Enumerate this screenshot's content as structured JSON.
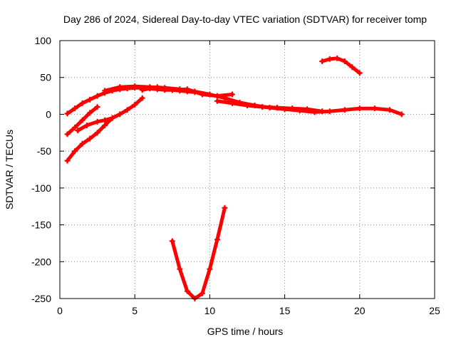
{
  "chart_data": {
    "type": "line",
    "title": "Day 286 of 2024, Sidereal Day-to-day VTEC variation (SDTVAR) for receiver tomp",
    "xlabel": "GPS time / hours",
    "ylabel": "SDTVAR / TECUs",
    "xlim": [
      0,
      25
    ],
    "ylim": [
      -250,
      100
    ],
    "xticks": [
      0,
      5,
      10,
      15,
      20,
      25
    ],
    "yticks": [
      100,
      50,
      0,
      -50,
      -100,
      -150,
      -200,
      -250
    ],
    "grid": true,
    "color": "#ff0000",
    "series": [
      {
        "name": "arc-1",
        "x": [
          0.5,
          1.0,
          1.5,
          2.0,
          2.5,
          3.0,
          3.5,
          4.0,
          4.5,
          5.0,
          5.5,
          6.0,
          6.5,
          7.0,
          7.5,
          8.0,
          8.5,
          9.0
        ],
        "y": [
          1,
          8,
          15,
          20,
          25,
          29,
          32,
          34,
          35,
          36,
          36,
          35,
          34,
          33,
          33,
          32,
          31,
          30
        ]
      },
      {
        "name": "arc-2",
        "x": [
          0.5,
          1.0,
          1.5,
          2.0,
          2.5
        ],
        "y": [
          -27,
          -18,
          -8,
          2,
          10
        ]
      },
      {
        "name": "arc-3",
        "x": [
          0.5,
          1.0,
          1.5,
          2.0,
          2.5,
          3.0,
          3.5
        ],
        "y": [
          -63,
          -50,
          -40,
          -33,
          -25,
          -15,
          -5
        ]
      },
      {
        "name": "arc-4",
        "x": [
          1.2,
          1.8,
          2.5,
          3.0,
          3.5,
          4.0,
          4.5,
          5.0,
          5.5
        ],
        "y": [
          -22,
          -15,
          -10,
          -8,
          -5,
          0,
          6,
          13,
          22
        ]
      },
      {
        "name": "arc-5",
        "x": [
          3.0,
          4.0,
          5.0,
          6.0,
          7.0,
          8.0,
          9.0,
          10.0,
          11.0,
          12.0,
          13.0,
          14.0,
          15.0,
          16.0,
          17.0,
          18.0,
          19.0,
          20.0,
          21.0,
          22.0,
          22.8
        ],
        "y": [
          32,
          37,
          38,
          37,
          36,
          34,
          31,
          27,
          22,
          16,
          12,
          9,
          7,
          5,
          3,
          4,
          6,
          8,
          8,
          6,
          0
        ]
      },
      {
        "name": "arc-6",
        "x": [
          5.5,
          6.5,
          7.5,
          8.5,
          9.5,
          10.5,
          11.5
        ],
        "y": [
          33,
          37,
          33,
          34,
          27,
          25,
          27
        ]
      },
      {
        "name": "arc-7",
        "x": [
          10.5,
          11.5,
          12.5,
          13.5,
          14.5,
          15.5,
          16.5,
          17.5
        ],
        "y": [
          18,
          15,
          12,
          10,
          9,
          8,
          7,
          4
        ]
      },
      {
        "name": "arc-8",
        "x": [
          7.5,
          8.0,
          8.5,
          9.0,
          9.5,
          10.0,
          10.5,
          11.0
        ],
        "y": [
          -172,
          -210,
          -240,
          -250,
          -243,
          -210,
          -170,
          -127
        ]
      },
      {
        "name": "arc-9",
        "x": [
          17.5,
          18.0,
          18.5,
          19.0,
          19.5,
          20.0
        ],
        "y": [
          72,
          75,
          76,
          72,
          64,
          56
        ]
      }
    ]
  }
}
